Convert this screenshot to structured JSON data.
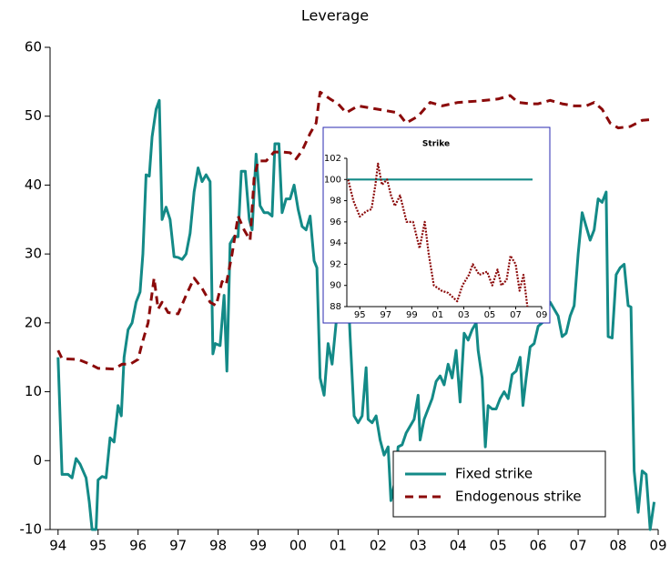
{
  "chart_data": [
    {
      "type": "line",
      "title": "Leverage",
      "xlim": [
        1993.8,
        2009
      ],
      "ylim": [
        -10,
        60
      ],
      "xticks": [
        {
          "value": 1994,
          "label": "94"
        },
        {
          "value": 1995,
          "label": "95"
        },
        {
          "value": 1996,
          "label": "96"
        },
        {
          "value": 1997,
          "label": "97"
        },
        {
          "value": 1998,
          "label": "98"
        },
        {
          "value": 1999,
          "label": "99"
        },
        {
          "value": 2000,
          "label": "00"
        },
        {
          "value": 2001,
          "label": "01"
        },
        {
          "value": 2002,
          "label": "02"
        },
        {
          "value": 2003,
          "label": "03"
        },
        {
          "value": 2004,
          "label": "04"
        },
        {
          "value": 2005,
          "label": "05"
        },
        {
          "value": 2006,
          "label": "06"
        },
        {
          "value": 2007,
          "label": "07"
        },
        {
          "value": 2008,
          "label": "08"
        },
        {
          "value": 2009,
          "label": "09"
        }
      ],
      "yticks": [
        -10,
        0,
        10,
        20,
        30,
        40,
        50,
        60
      ],
      "grid": false,
      "legend": "lower right",
      "series": [
        {
          "name": "Fixed strike",
          "color": "#138a87",
          "dash": false,
          "x": [
            1994.0,
            1994.1,
            1994.25,
            1994.35,
            1994.45,
            1994.55,
            1994.7,
            1994.78,
            1994.85,
            1994.95,
            1995.0,
            1995.1,
            1995.2,
            1995.3,
            1995.4,
            1995.5,
            1995.58,
            1995.65,
            1995.75,
            1995.85,
            1995.95,
            1996.05,
            1996.12,
            1996.2,
            1996.28,
            1996.35,
            1996.45,
            1996.53,
            1996.6,
            1996.7,
            1996.8,
            1996.9,
            1997.0,
            1997.1,
            1997.2,
            1997.3,
            1997.4,
            1997.5,
            1997.6,
            1997.7,
            1997.8,
            1997.87,
            1997.93,
            1998.05,
            1998.15,
            1998.22,
            1998.3,
            1998.4,
            1998.5,
            1998.58,
            1998.68,
            1998.78,
            1998.85,
            1998.95,
            1999.05,
            1999.15,
            1999.25,
            1999.35,
            1999.42,
            1999.52,
            1999.6,
            1999.7,
            1999.8,
            1999.9,
            2000.0,
            2000.1,
            2000.2,
            2000.3,
            2000.4,
            2000.47,
            2000.55,
            2000.65,
            2000.75,
            2000.85,
            2000.95,
            2001.05,
            2001.12,
            2001.2,
            2001.3,
            2001.4,
            2001.5,
            2001.6,
            2001.7,
            2001.75,
            2001.85,
            2001.95,
            2002.05,
            2002.15,
            2002.25,
            2002.32,
            2002.42,
            2002.5,
            2002.6,
            2002.7,
            2002.8,
            2002.9,
            2003.0,
            2003.05,
            2003.15,
            2003.25,
            2003.35,
            2003.45,
            2003.55,
            2003.65,
            2003.75,
            2003.85,
            2003.95,
            2004.05,
            2004.15,
            2004.25,
            2004.35,
            2004.45,
            2004.5,
            2004.6,
            2004.68,
            2004.75,
            2004.85,
            2004.95,
            2005.05,
            2005.15,
            2005.25,
            2005.35,
            2005.45,
            2005.55,
            2005.62,
            2005.7,
            2005.8,
            2005.9,
            2006.0,
            2006.1,
            2006.2,
            2006.3,
            2006.4,
            2006.5,
            2006.6,
            2006.7,
            2006.8,
            2006.9,
            2007.0,
            2007.1,
            2007.2,
            2007.3,
            2007.4,
            2007.5,
            2007.6,
            2007.7,
            2007.75,
            2007.85,
            2007.95,
            2008.05,
            2008.15,
            2008.25,
            2008.32,
            2008.4,
            2008.5,
            2008.6,
            2008.7,
            2008.8,
            2008.9
          ],
          "values": [
            15,
            -2,
            -2,
            -2.5,
            0.3,
            -0.5,
            -2.5,
            -6,
            -10,
            -10,
            -2.8,
            -2.3,
            -2.5,
            3.3,
            2.7,
            8,
            6.5,
            15,
            19,
            20,
            23,
            24.5,
            30,
            41.5,
            41.3,
            47,
            51,
            52.3,
            35,
            36.8,
            35,
            29.6,
            29.5,
            29.2,
            30,
            33,
            39,
            42.5,
            40.5,
            41.5,
            40.5,
            15.5,
            17,
            16.7,
            24,
            13,
            31.5,
            32.5,
            32.5,
            42,
            42,
            35,
            33.5,
            44.5,
            37,
            36,
            36,
            35.5,
            46,
            46,
            36,
            38,
            38,
            40,
            36.5,
            34,
            33.5,
            35.5,
            29,
            28,
            12,
            9.5,
            17,
            14,
            20,
            36.5,
            35.5,
            31,
            18,
            6.5,
            5.5,
            6.5,
            13.5,
            6,
            5.5,
            6.5,
            3,
            0.8,
            2,
            -5.8,
            -3,
            2,
            2.3,
            4,
            5,
            6,
            9.5,
            3,
            6,
            7.5,
            9,
            11.5,
            12.3,
            11,
            14,
            12,
            16,
            8.5,
            18.5,
            17.5,
            19,
            20,
            16,
            12,
            2,
            8,
            7.5,
            7.5,
            9,
            10,
            9,
            12.5,
            13,
            15,
            8,
            12,
            16.5,
            17,
            19.5,
            20,
            22,
            23,
            22,
            21,
            18,
            18.5,
            21,
            22.5,
            30,
            36,
            34,
            32,
            33.5,
            38,
            37.5,
            39,
            18,
            17.8,
            27,
            28,
            28.5,
            22.5,
            22.3,
            -1.5,
            -7.5,
            -1.5,
            -2,
            -10,
            -6
          ]
        },
        {
          "name": "Endogenous strike",
          "color": "#8b0a0a",
          "dash": true,
          "x": [
            1994.0,
            1994.1,
            1994.5,
            1994.8,
            1995.0,
            1995.4,
            1995.6,
            1995.8,
            1996.0,
            1996.1,
            1996.25,
            1996.4,
            1996.5,
            1996.6,
            1996.75,
            1997.0,
            1997.2,
            1997.4,
            1997.6,
            1997.8,
            1997.95,
            1998.1,
            1998.2,
            1998.35,
            1998.5,
            1998.65,
            1998.8,
            1998.9,
            1999.0,
            1999.2,
            1999.4,
            1999.6,
            1999.8,
            1999.95,
            2000.1,
            2000.3,
            2000.45,
            2000.55,
            2000.8,
            2001.0,
            2001.2,
            2001.5,
            2002.0,
            2002.5,
            2002.7,
            2003.0,
            2003.3,
            2003.6,
            2004.0,
            2004.5,
            2005.0,
            2005.3,
            2005.5,
            2005.8,
            2006.0,
            2006.3,
            2006.6,
            2006.9,
            2007.2,
            2007.4,
            2007.6,
            2007.8,
            2008.0,
            2008.3,
            2008.6,
            2008.8
          ],
          "values": [
            16,
            14.8,
            14.7,
            14,
            13.4,
            13.3,
            14,
            14,
            14.7,
            17,
            20,
            26.5,
            22,
            23,
            21.5,
            21.3,
            24,
            26.5,
            25,
            23,
            22.5,
            26,
            25.5,
            30,
            35.5,
            33.5,
            32,
            41,
            43.5,
            43.5,
            44.8,
            44.8,
            44.7,
            43.8,
            45,
            47.5,
            49,
            53.5,
            52.5,
            51.8,
            50.5,
            51.5,
            51,
            50.5,
            49,
            50,
            52,
            51.5,
            52,
            52.2,
            52.5,
            53,
            52,
            51.8,
            51.8,
            52.3,
            51.8,
            51.5,
            51.5,
            52,
            51,
            49,
            48.3,
            48.5,
            49.4,
            49.5
          ]
        }
      ]
    },
    {
      "type": "line",
      "title": "Strike",
      "xlim": [
        1994,
        2009
      ],
      "ylim": [
        88,
        102
      ],
      "xticks": [
        {
          "value": 1995,
          "label": "95"
        },
        {
          "value": 1997,
          "label": "97"
        },
        {
          "value": 1999,
          "label": "99"
        },
        {
          "value": 2001,
          "label": "01"
        },
        {
          "value": 2003,
          "label": "03"
        },
        {
          "value": 2005,
          "label": "05"
        },
        {
          "value": 2007,
          "label": "07"
        },
        {
          "value": 2009,
          "label": "09"
        }
      ],
      "yticks": [
        88,
        90,
        92,
        94,
        96,
        98,
        100,
        102
      ],
      "grid": false,
      "series": [
        {
          "color": "#138a87",
          "dash": false,
          "x": [
            1994.0,
            2008.3
          ],
          "values": [
            100,
            100
          ]
        },
        {
          "color": "#8b0a0a",
          "dash": true,
          "x": [
            1994.1,
            1994.5,
            1995.0,
            1995.5,
            1995.9,
            1996.2,
            1996.4,
            1996.7,
            1997.1,
            1997.4,
            1997.7,
            1998.1,
            1998.6,
            1999.1,
            1999.6,
            2000.0,
            2000.3,
            2000.7,
            2001.3,
            2001.8,
            2002.5,
            2002.9,
            2003.4,
            2003.7,
            2004.2,
            2004.8,
            2005.2,
            2005.6,
            2005.9,
            2006.3,
            2006.6,
            2007.0,
            2007.3,
            2007.6,
            2007.9
          ],
          "values": [
            100,
            98,
            96.5,
            97,
            97.2,
            99.5,
            101.5,
            99.5,
            100,
            98.5,
            97.5,
            98.5,
            96,
            96,
            93.5,
            96,
            93,
            90,
            89.5,
            89.3,
            88.5,
            90,
            91,
            92,
            91,
            91.3,
            90,
            91.5,
            90,
            90.5,
            92.8,
            92,
            89.5,
            91,
            88
          ]
        }
      ]
    }
  ]
}
